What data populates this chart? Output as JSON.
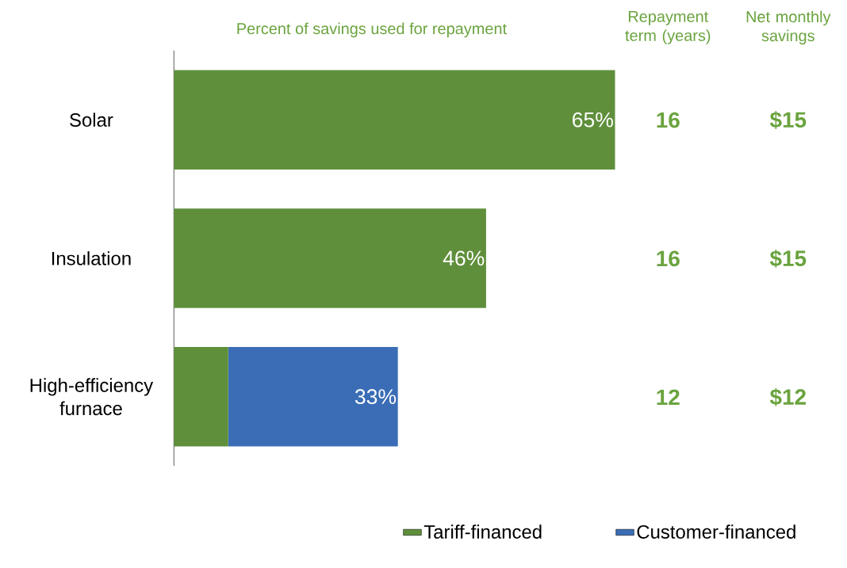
{
  "chart_data": {
    "type": "bar",
    "orientation": "horizontal",
    "stacked": true,
    "title": "Percent of savings used for repayment",
    "categories": [
      "Solar",
      "Insulation",
      "High-efficiency furnace"
    ],
    "series": [
      {
        "name": "Tariff-financed",
        "color": "#5f8f3b",
        "values": [
          65,
          46,
          8
        ],
        "value_labels": [
          "65%",
          "46%",
          null
        ]
      },
      {
        "name": "Customer-financed",
        "color": "#3a6db5",
        "values": [
          0,
          0,
          25
        ]
      }
    ],
    "totals": [
      null,
      null,
      "33%"
    ],
    "tick_labels": "y",
    "legend": "bottom",
    "annotations": [
      "Repayment term (years)",
      "Net monthly savings",
      "16",
      "$15",
      "16",
      "$15",
      "12",
      "$12"
    ]
  }
}
